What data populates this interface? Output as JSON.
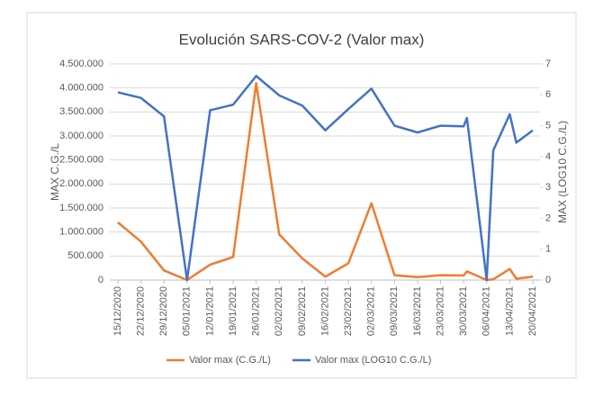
{
  "chart_data": {
    "type": "line",
    "title": "Evolución SARS-COV-2 (Valor max)",
    "y_label": "MAX C.G./L",
    "y2_label": "MAX (LOG10 C.G./L)",
    "x": [
      "15/12/2020",
      "22/12/2020",
      "29/12/2020",
      "05/01/2021",
      "12/01/2021",
      "19/01/2021",
      "26/01/2021",
      "02/02/2021",
      "09/02/2021",
      "16/02/2021",
      "23/02/2021",
      "02/03/2021",
      "09/03/2021",
      "16/03/2021",
      "23/03/2021",
      "30/03/2021",
      "31/03/2021",
      "06/04/2021",
      "08/04/2021",
      "13/04/2021",
      "15/04/2021",
      "20/04/2021"
    ],
    "xlim": [
      "15/12/2020",
      "20/04/2021"
    ],
    "xticks": [
      "15/12/2020",
      "22/12/2020",
      "29/12/2020",
      "05/01/2021",
      "12/01/2021",
      "19/01/2021",
      "26/01/2021",
      "02/02/2021",
      "09/02/2021",
      "16/02/2021",
      "23/02/2021",
      "02/03/2021",
      "09/03/2021",
      "16/03/2021",
      "23/03/2021",
      "30/03/2021",
      "06/04/2021",
      "13/04/2021",
      "20/04/2021"
    ],
    "series": [
      {
        "name": "Valor max (C.G./L)",
        "color": "#ed7d31",
        "axis": "y",
        "values": [
          1200000,
          800000,
          200000,
          0,
          320000,
          480000,
          4100000,
          950000,
          450000,
          70000,
          350000,
          1600000,
          100000,
          60000,
          100000,
          95000,
          180000,
          0,
          16000,
          230000,
          28000,
          70000
        ]
      },
      {
        "name": "Valor max (LOG10 C.G./L)",
        "color": "#4472c4",
        "axis": "y2",
        "values": [
          6.08,
          5.9,
          5.3,
          0,
          5.5,
          5.68,
          6.61,
          5.98,
          5.65,
          4.85,
          5.54,
          6.2,
          5.0,
          4.78,
          5.0,
          4.98,
          5.25,
          0,
          4.2,
          5.37,
          4.45,
          4.85
        ]
      }
    ],
    "ylim": [
      0,
      4500000
    ],
    "yticks": [
      0,
      {
        "value": 500000,
        "label": "500.000"
      },
      {
        "value": 1000000,
        "label": "1.000.000"
      },
      {
        "value": 1500000,
        "label": "1.500.000"
      },
      {
        "value": 2000000,
        "label": "2.000.000"
      },
      {
        "value": 2500000,
        "label": "2.500.000"
      },
      {
        "value": 3000000,
        "label": "3.000.000"
      },
      {
        "value": 3500000,
        "label": "3.500.000"
      },
      {
        "value": 4000000,
        "label": "4.000.000"
      },
      {
        "value": 4500000,
        "label": "4.500.000"
      }
    ],
    "y2lim": [
      0,
      7
    ],
    "y2ticks": [
      0,
      1,
      2,
      3,
      4,
      5,
      6,
      7
    ],
    "grid": true,
    "legend": "bottom"
  }
}
